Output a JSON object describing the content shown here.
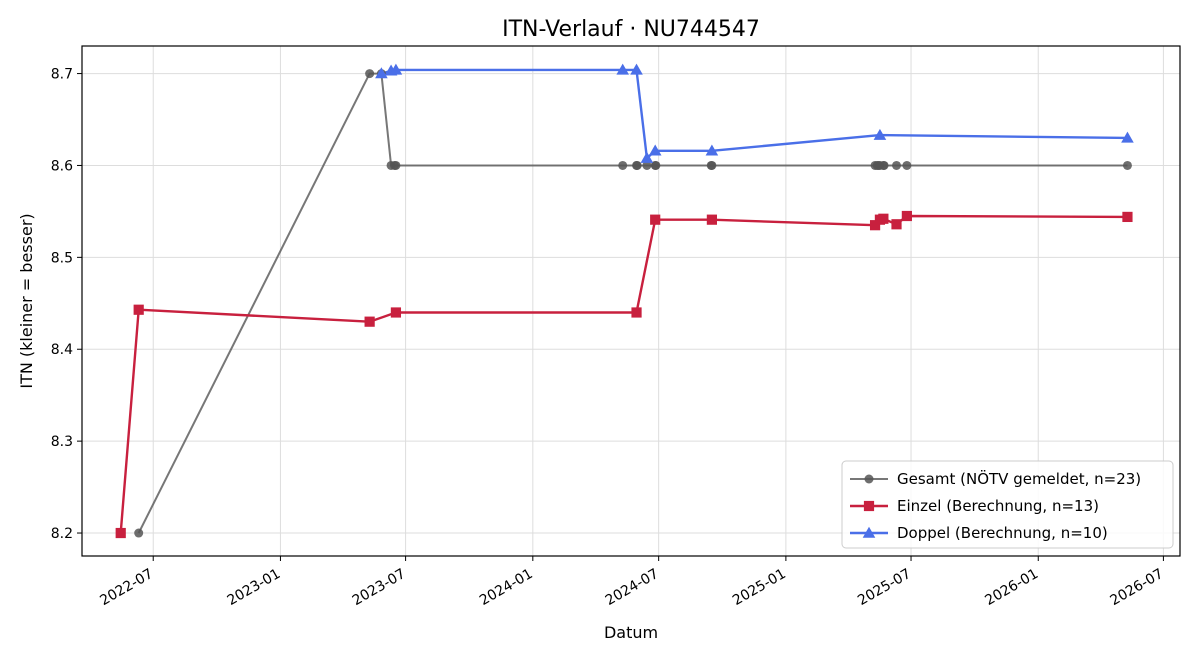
{
  "chart_data": {
    "type": "line",
    "title": "ITN-Verlauf · NU744547",
    "xlabel": "Datum",
    "ylabel": "ITN  (kleiner = besser)",
    "x_is_date": true,
    "xlim": [
      "2022-03-20",
      "2026-07-25"
    ],
    "ylim": [
      8.175,
      8.73
    ],
    "x_ticks": [
      "2022-07-01",
      "2023-01-01",
      "2023-07-01",
      "2024-01-01",
      "2024-07-01",
      "2025-01-01",
      "2025-07-01",
      "2026-01-01",
      "2026-07-01"
    ],
    "x_tick_labels": [
      "2022-07",
      "2023-01",
      "2023-07",
      "2024-01",
      "2024-07",
      "2025-01",
      "2025-07",
      "2026-01",
      "2026-07"
    ],
    "y_ticks": [
      8.2,
      8.3,
      8.4,
      8.5,
      8.6,
      8.7
    ],
    "y_tick_labels": [
      "8.2",
      "8.3",
      "8.4",
      "8.5",
      "8.6",
      "8.7"
    ],
    "grid": true,
    "legend_position": "lower-right",
    "series": [
      {
        "name": "Gesamt (NÖTV gemeldet, n=23)",
        "color": "#555555",
        "marker": "circle",
        "points": [
          {
            "x": "2022-06-10",
            "y": 8.2
          },
          {
            "x": "2023-05-10",
            "y": 8.7
          },
          {
            "x": "2023-05-27",
            "y": 8.7
          },
          {
            "x": "2023-06-10",
            "y": 8.6
          },
          {
            "x": "2023-06-15",
            "y": 8.6
          },
          {
            "x": "2023-06-17",
            "y": 8.6
          },
          {
            "x": "2024-05-10",
            "y": 8.6
          },
          {
            "x": "2024-05-30",
            "y": 8.6
          },
          {
            "x": "2024-05-31",
            "y": 8.6
          },
          {
            "x": "2024-06-14",
            "y": 8.6
          },
          {
            "x": "2024-06-26",
            "y": 8.6
          },
          {
            "x": "2024-06-27",
            "y": 8.6
          },
          {
            "x": "2024-09-15",
            "y": 8.6
          },
          {
            "x": "2024-09-16",
            "y": 8.6
          },
          {
            "x": "2025-05-10",
            "y": 8.6
          },
          {
            "x": "2025-05-13",
            "y": 8.6
          },
          {
            "x": "2025-05-15",
            "y": 8.6
          },
          {
            "x": "2025-05-17",
            "y": 8.6
          },
          {
            "x": "2025-05-22",
            "y": 8.6
          },
          {
            "x": "2025-05-23",
            "y": 8.6
          },
          {
            "x": "2025-06-10",
            "y": 8.6
          },
          {
            "x": "2025-06-25",
            "y": 8.6
          },
          {
            "x": "2026-05-10",
            "y": 8.6
          }
        ]
      },
      {
        "name": "Einzel (Berechnung, n=13)",
        "color": "#c8203e",
        "marker": "square",
        "points": [
          {
            "x": "2022-05-15",
            "y": 8.2
          },
          {
            "x": "2022-06-10",
            "y": 8.443
          },
          {
            "x": "2023-05-10",
            "y": 8.43
          },
          {
            "x": "2023-06-17",
            "y": 8.44
          },
          {
            "x": "2024-05-30",
            "y": 8.44
          },
          {
            "x": "2024-06-26",
            "y": 8.541
          },
          {
            "x": "2024-09-16",
            "y": 8.541
          },
          {
            "x": "2025-05-10",
            "y": 8.535
          },
          {
            "x": "2025-05-17",
            "y": 8.541
          },
          {
            "x": "2025-05-22",
            "y": 8.542
          },
          {
            "x": "2025-06-10",
            "y": 8.536
          },
          {
            "x": "2025-06-25",
            "y": 8.545
          },
          {
            "x": "2026-05-10",
            "y": 8.544
          }
        ]
      },
      {
        "name": "Doppel (Berechnung, n=10)",
        "color": "#4a6fe8",
        "marker": "triangle",
        "points": [
          {
            "x": "2023-05-27",
            "y": 8.7
          },
          {
            "x": "2023-06-10",
            "y": 8.703
          },
          {
            "x": "2023-06-17",
            "y": 8.704
          },
          {
            "x": "2024-05-10",
            "y": 8.704
          },
          {
            "x": "2024-05-30",
            "y": 8.704
          },
          {
            "x": "2024-06-14",
            "y": 8.608
          },
          {
            "x": "2024-06-26",
            "y": 8.616
          },
          {
            "x": "2024-09-16",
            "y": 8.616
          },
          {
            "x": "2025-05-17",
            "y": 8.633
          },
          {
            "x": "2026-05-10",
            "y": 8.63
          }
        ]
      }
    ]
  }
}
